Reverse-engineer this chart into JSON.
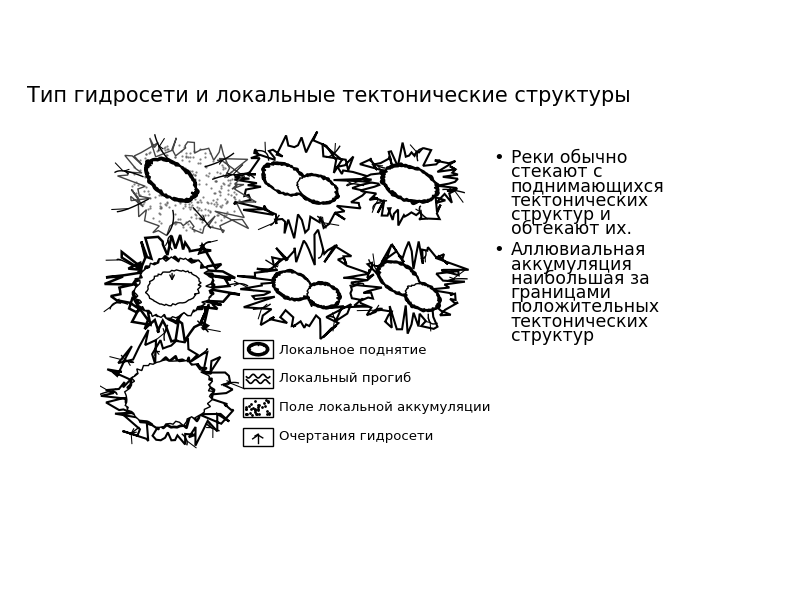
{
  "title": "Тип гидросети и локальные тектонические структуры",
  "title_fontsize": 15,
  "background_color": "#ffffff",
  "bullet_point1_lines": [
    "Реки обычно",
    "стекают с",
    "поднимающихся",
    "тектонических",
    "структур и",
    "обтекают их."
  ],
  "bullet_point2_lines": [
    "Аллювиальная",
    "аккумуляция",
    "наибольшая за",
    "границами",
    "положительных",
    "тектонических",
    "структур"
  ],
  "legend_items": [
    "Локальное поднятие",
    "Локальный прогиб",
    "Поле локальной аккумуляции",
    "Очертания гидросети"
  ],
  "text_color": "#000000"
}
